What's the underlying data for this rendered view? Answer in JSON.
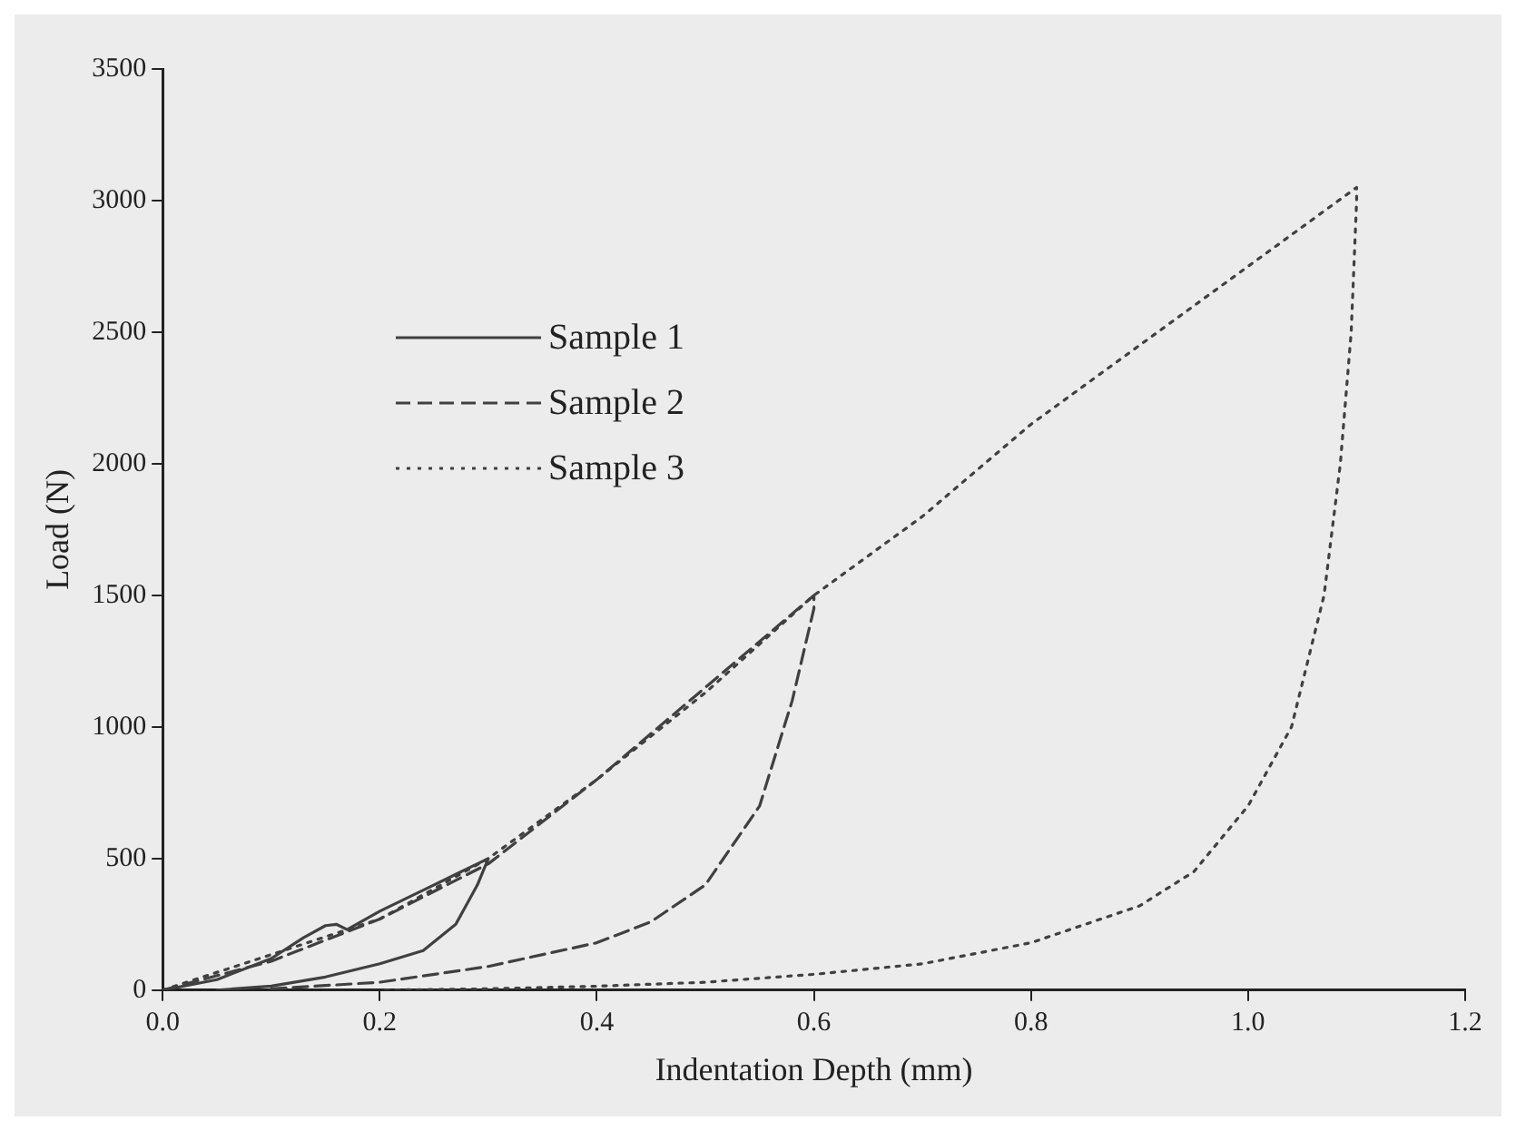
{
  "chart_data": {
    "type": "line",
    "xlabel": "Indentation Depth (mm)",
    "ylabel": "Load (N)",
    "xlim": [
      0,
      1.2
    ],
    "xticks": [
      {
        "value": 0,
        "label": "0.0"
      },
      0.2,
      0.4,
      0.6,
      0.8,
      {
        "value": 1,
        "label": "1.0"
      },
      1.2
    ],
    "ylim": [
      0,
      3500
    ],
    "yticks": [
      0,
      500,
      1000,
      1500,
      2000,
      2500,
      3000,
      3500
    ],
    "grid": false,
    "legend": "top left",
    "marker": "none",
    "series": [
      {
        "name": "Sample 1",
        "color": "#404040",
        "line_style": "solid",
        "x": [
          0,
          0.05,
          0.1,
          0.13,
          0.15,
          0.16,
          0.17,
          0.2,
          0.25,
          0.3,
          0.29,
          0.27,
          0.24,
          0.2,
          0.15,
          0.1,
          0.05
        ],
        "values": [
          0,
          40,
          120,
          200,
          245,
          250,
          230,
          300,
          400,
          500,
          400,
          250,
          150,
          100,
          50,
          15,
          0
        ]
      },
      {
        "name": "Sample 2",
        "color": "#404040",
        "line_style": "dashed",
        "x": [
          0,
          0.1,
          0.2,
          0.3,
          0.4,
          0.5,
          0.6,
          0.6,
          0.58,
          0.55,
          0.5,
          0.45,
          0.4,
          0.3,
          0.2,
          0.1
        ],
        "values": [
          0,
          110,
          270,
          480,
          800,
          1150,
          1500,
          1450,
          1100,
          700,
          400,
          260,
          180,
          90,
          30,
          5
        ]
      },
      {
        "name": "Sample 3",
        "color": "#404040",
        "line_style": "dotted",
        "x": [
          0,
          0.2,
          0.3,
          0.4,
          0.5,
          0.6,
          0.7,
          0.8,
          0.9,
          1.0,
          1.1,
          1.1,
          1.095,
          1.085,
          1.07,
          1.04,
          1.0,
          0.95,
          0.9,
          0.8,
          0.7,
          0.6,
          0.5,
          0.4,
          0.3,
          0.2
        ],
        "values": [
          0,
          270,
          500,
          800,
          1130,
          1500,
          1800,
          2150,
          2450,
          2750,
          3050,
          3000,
          2500,
          2000,
          1500,
          1000,
          700,
          450,
          320,
          180,
          100,
          60,
          30,
          15,
          5,
          0
        ]
      }
    ]
  }
}
